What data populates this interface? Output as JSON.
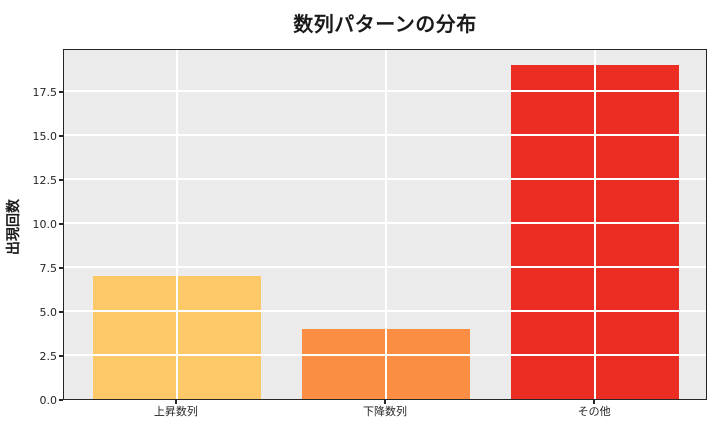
{
  "chart_data": {
    "type": "bar",
    "title": "数列パターンの分布",
    "ylabel": "出現回数",
    "xlabel": "",
    "categories": [
      "上昇数列",
      "下降数列",
      "その他"
    ],
    "values": [
      7,
      4,
      19
    ],
    "bar_colors": [
      "#FDC968",
      "#FA8E42",
      "#EC2D24"
    ],
    "ytick_labels": [
      "0.0",
      "2.5",
      "5.0",
      "7.5",
      "10.0",
      "12.5",
      "15.0",
      "17.5"
    ],
    "ytick_values": [
      0,
      2.5,
      5,
      7.5,
      10,
      12.5,
      15,
      17.5
    ],
    "ylim": [
      0,
      19.95
    ],
    "grid": "on",
    "grid_color": "#ffffff",
    "grid_over_bars": true,
    "legend": "none",
    "plot_background": "#ebebeb",
    "figure_background": "#ffffff",
    "spine_color": "#262626"
  }
}
